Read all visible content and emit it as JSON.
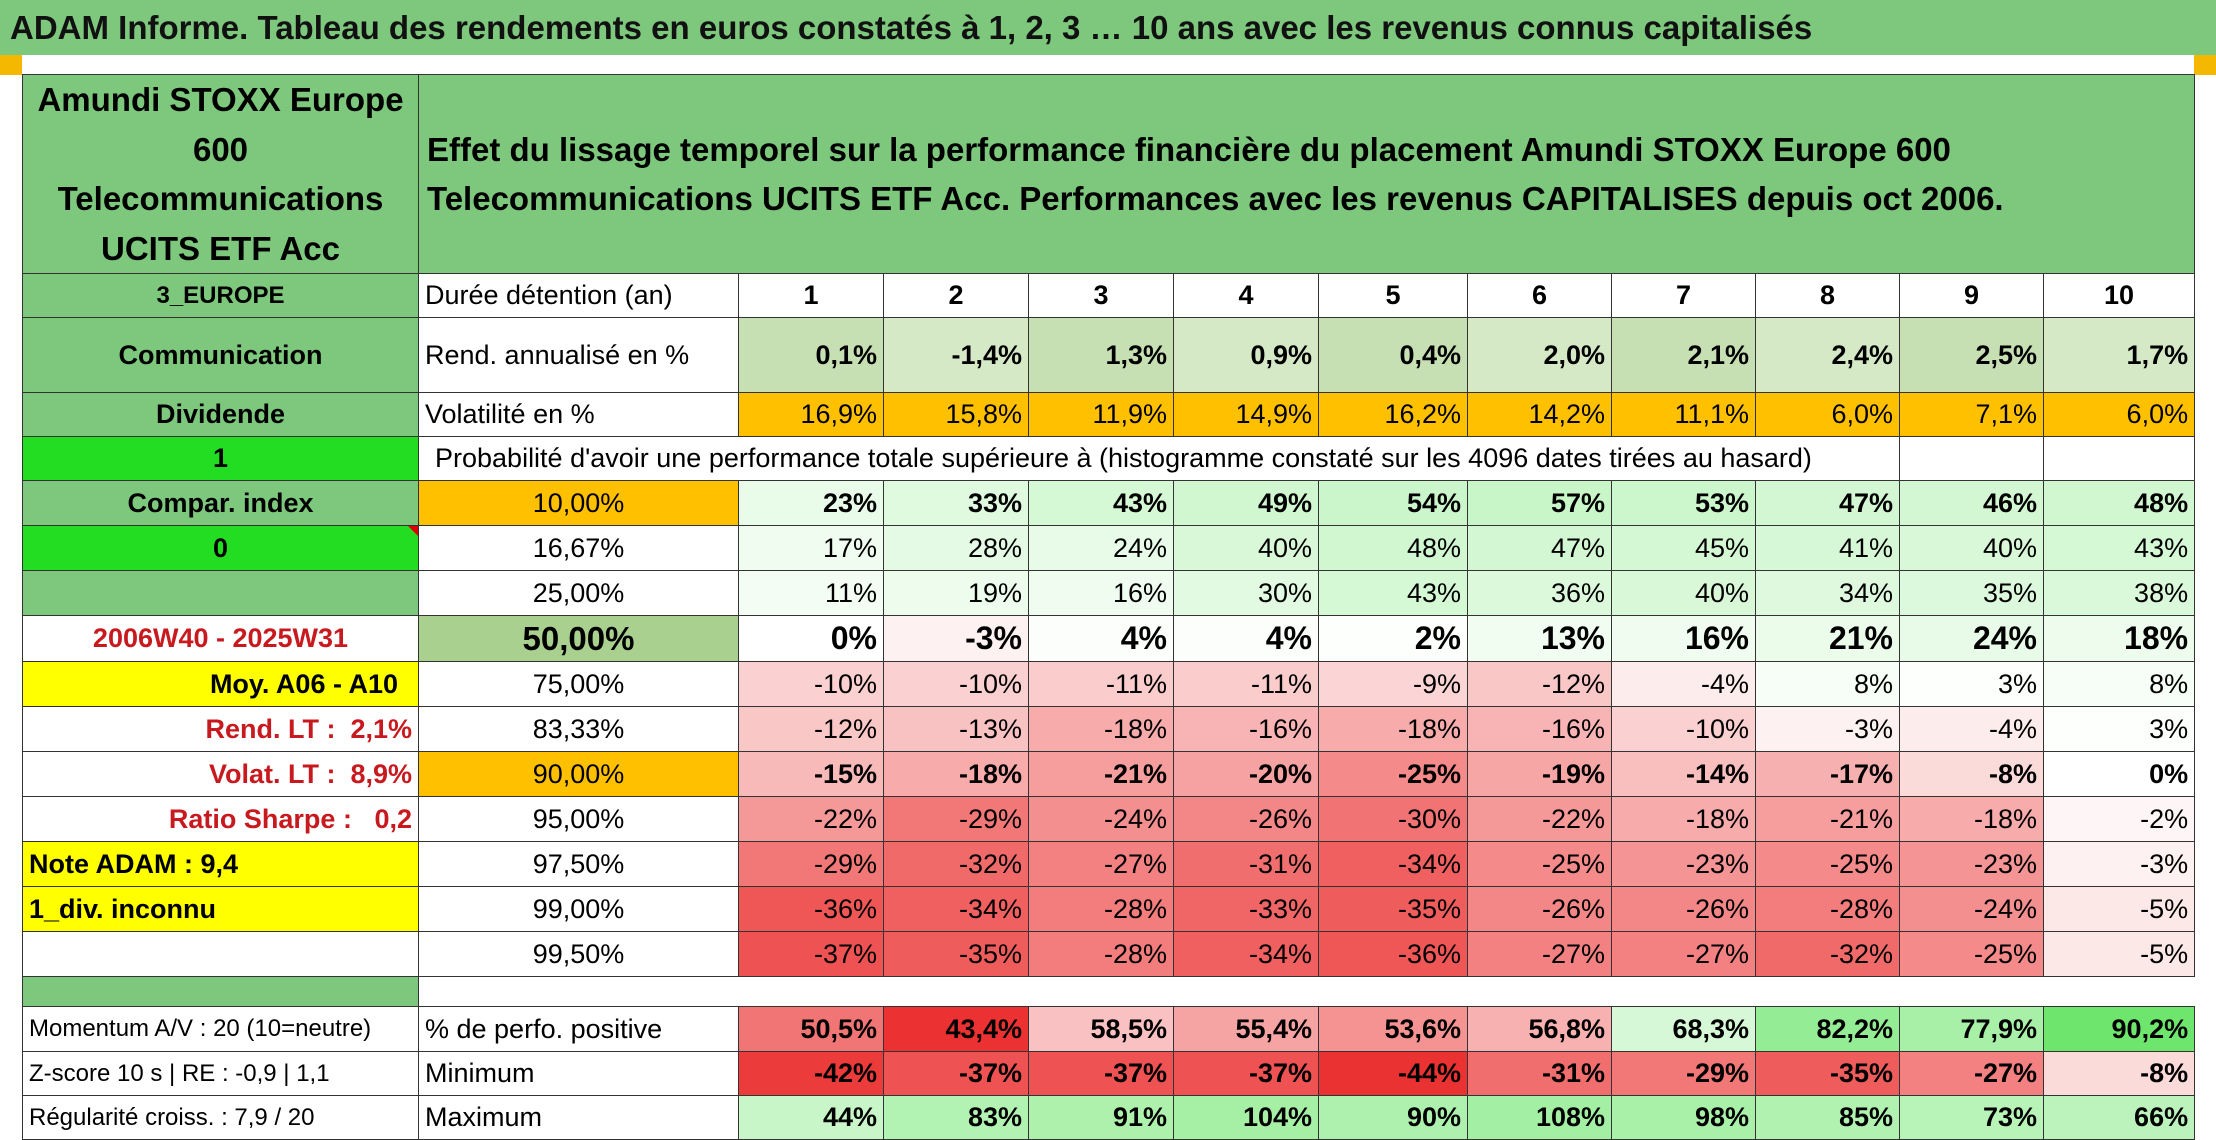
{
  "title": "ADAM Informe. Tableau des rendements en euros constatés à 1, 2, 3 … 10 ans avec les revenus connus capitalisés",
  "fund_name": "Amundi STOXX Europe 600 Telecommunications UCITS ETF Acc",
  "description": "Effet du lissage temporel sur la performance financière du placement Amundi STOXX Europe 600 Telecommunications UCITS ETF Acc. Performances avec les revenus CAPITALISES depuis oct 2006.",
  "colors": {
    "green_header": "#7dc87d",
    "bright_green": "#22dd22",
    "yellow": "#ffff00",
    "orange": "#ffc000",
    "red_text": "#c8191e",
    "light_green": "#c6e0b4"
  },
  "left": {
    "zone": "3_EUROPE",
    "sector": "Communication",
    "type": "Dividende",
    "flag1": "1",
    "compar": "Compar. index",
    "flag2": "0",
    "blank": "",
    "period": "2006W40 - 2025W31",
    "moy": "Moy. A06 - A10",
    "rend_lt_label": "Rend. LT :",
    "rend_lt": "2,1%",
    "volat_lt_label": "Volat. LT :",
    "volat_lt": "8,9%",
    "sharpe_label": "Ratio Sharpe :",
    "sharpe": "0,2",
    "note": "Note ADAM : 9,4",
    "div": "1_div. inconnu",
    "blank2": "",
    "blank3": "",
    "momentum": "Momentum A/V : 20 (10=neutre)",
    "zscore": "Z-score 10 s | RE : -0,9 | 1,1",
    "regularite": "Régularité croiss. : 7,9 / 20"
  },
  "row_labels": {
    "duree": "Durée détention (an)",
    "rend": "Rend. annualisé en %",
    "vol": "Volatilité en %",
    "proba": "Probabilité d'avoir une performance totale supérieure à (histogramme constaté sur les 4096 dates tirées au hasard)",
    "positive": "% de perfo. positive",
    "minimum": "Minimum",
    "maximum": "Maximum"
  },
  "years": [
    "1",
    "2",
    "3",
    "4",
    "5",
    "6",
    "7",
    "8",
    "9",
    "10"
  ],
  "rend": [
    "0,1%",
    "-1,4%",
    "1,3%",
    "0,9%",
    "0,4%",
    "2,0%",
    "2,1%",
    "2,4%",
    "2,5%",
    "1,7%"
  ],
  "vol": [
    "16,9%",
    "15,8%",
    "11,9%",
    "14,9%",
    "16,2%",
    "14,2%",
    "11,1%",
    "6,0%",
    "7,1%",
    "6,0%"
  ],
  "percentiles": [
    {
      "p": "10,00%",
      "v": [
        "23%",
        "33%",
        "43%",
        "49%",
        "54%",
        "57%",
        "53%",
        "47%",
        "46%",
        "48%"
      ]
    },
    {
      "p": "16,67%",
      "v": [
        "17%",
        "28%",
        "24%",
        "40%",
        "48%",
        "47%",
        "45%",
        "41%",
        "40%",
        "43%"
      ]
    },
    {
      "p": "25,00%",
      "v": [
        "11%",
        "19%",
        "16%",
        "30%",
        "43%",
        "36%",
        "40%",
        "34%",
        "35%",
        "38%"
      ]
    },
    {
      "p": "50,00%",
      "v": [
        "0%",
        "-3%",
        "4%",
        "4%",
        "2%",
        "13%",
        "16%",
        "21%",
        "24%",
        "18%"
      ]
    },
    {
      "p": "75,00%",
      "v": [
        "-10%",
        "-10%",
        "-11%",
        "-11%",
        "-9%",
        "-12%",
        "-4%",
        "8%",
        "3%",
        "8%"
      ]
    },
    {
      "p": "83,33%",
      "v": [
        "-12%",
        "-13%",
        "-18%",
        "-16%",
        "-18%",
        "-16%",
        "-10%",
        "-3%",
        "-4%",
        "3%"
      ]
    },
    {
      "p": "90,00%",
      "v": [
        "-15%",
        "-18%",
        "-21%",
        "-20%",
        "-25%",
        "-19%",
        "-14%",
        "-17%",
        "-8%",
        "0%"
      ]
    },
    {
      "p": "95,00%",
      "v": [
        "-22%",
        "-29%",
        "-24%",
        "-26%",
        "-30%",
        "-22%",
        "-18%",
        "-21%",
        "-18%",
        "-2%"
      ]
    },
    {
      "p": "97,50%",
      "v": [
        "-29%",
        "-32%",
        "-27%",
        "-31%",
        "-34%",
        "-25%",
        "-23%",
        "-25%",
        "-23%",
        "-3%"
      ]
    },
    {
      "p": "99,00%",
      "v": [
        "-36%",
        "-34%",
        "-28%",
        "-33%",
        "-35%",
        "-26%",
        "-26%",
        "-28%",
        "-24%",
        "-5%"
      ]
    },
    {
      "p": "99,50%",
      "v": [
        "-37%",
        "-35%",
        "-28%",
        "-34%",
        "-36%",
        "-27%",
        "-27%",
        "-32%",
        "-25%",
        "-5%"
      ]
    }
  ],
  "positive": [
    "50,5%",
    "43,4%",
    "58,5%",
    "55,4%",
    "53,6%",
    "56,8%",
    "68,3%",
    "82,2%",
    "77,9%",
    "90,2%"
  ],
  "minimum": [
    "-42%",
    "-37%",
    "-37%",
    "-37%",
    "-44%",
    "-31%",
    "-29%",
    "-35%",
    "-27%",
    "-8%"
  ],
  "maximum": [
    "44%",
    "83%",
    "91%",
    "104%",
    "90%",
    "108%",
    "98%",
    "85%",
    "73%",
    "66%"
  ]
}
